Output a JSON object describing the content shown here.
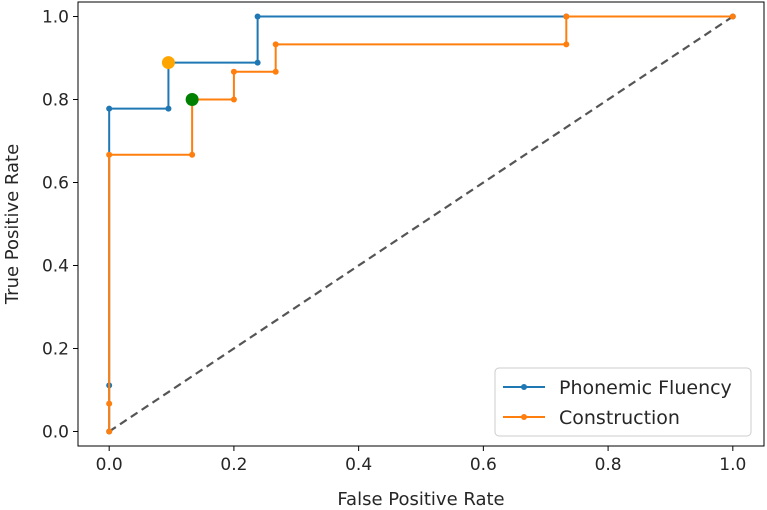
{
  "chart_data": {
    "type": "line",
    "title": "",
    "xlabel": "False Positive Rate",
    "ylabel": "True Positive Rate",
    "xlim": [
      -0.05,
      1.05
    ],
    "ylim": [
      -0.035,
      1.035
    ],
    "grid": false,
    "legend_position": "lower-right",
    "xticks": [
      0.0,
      0.2,
      0.4,
      0.6,
      0.8,
      1.0
    ],
    "xtick_labels": [
      "0.0",
      "0.2",
      "0.4",
      "0.6",
      "0.8",
      "1.0"
    ],
    "yticks": [
      0.0,
      0.2,
      0.4,
      0.6,
      0.8,
      1.0
    ],
    "ytick_labels": [
      "0.0",
      "0.2",
      "0.4",
      "0.6",
      "0.8",
      "1.0"
    ],
    "series": [
      {
        "name": "Phonemic Fluency",
        "color": "#1f77b4",
        "x": [
          0.0,
          0.0,
          0.0,
          0.095,
          0.095,
          0.238,
          0.238,
          0.733,
          1.0
        ],
        "y": [
          0.0,
          0.111,
          0.778,
          0.778,
          0.889,
          0.889,
          1.0,
          1.0,
          1.0
        ]
      },
      {
        "name": "Construction",
        "color": "#ff7f0e",
        "x": [
          0.0,
          0.0,
          0.0,
          0.133,
          0.133,
          0.2,
          0.2,
          0.267,
          0.267,
          0.733,
          0.733,
          1.0
        ],
        "y": [
          0.0,
          0.067,
          0.667,
          0.667,
          0.8,
          0.8,
          0.867,
          0.867,
          0.933,
          0.933,
          1.0,
          1.0
        ]
      }
    ],
    "reference_line": {
      "x": [
        0.0,
        1.0
      ],
      "y": [
        0.0,
        1.0
      ],
      "color": "#555555",
      "style": "dashed"
    },
    "highlight_points": [
      {
        "x": 0.095,
        "y": 0.889,
        "color": "#ffa500"
      },
      {
        "x": 0.133,
        "y": 0.8,
        "color": "#008000"
      }
    ]
  }
}
